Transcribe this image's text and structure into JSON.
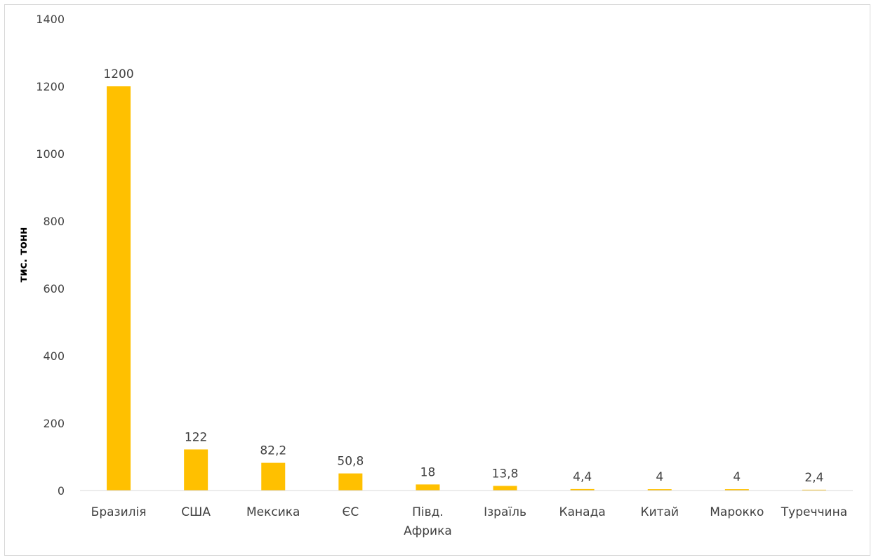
{
  "chart_data": {
    "type": "bar",
    "title": "",
    "xlabel": "",
    "ylabel": "тис. тонн",
    "ylim": [
      0,
      1400
    ],
    "yticks": [
      0,
      200,
      400,
      600,
      800,
      1000,
      1200,
      1400
    ],
    "grid": false,
    "legend": "none",
    "bar_color": "#ffc000",
    "categories": [
      "Бразилія",
      "США",
      "Мексика",
      "ЄС",
      "Півд. Африка",
      "Ізраїль",
      "Канада",
      "Китай",
      "Марокко",
      "Туреччина"
    ],
    "category_lines": [
      [
        "Бразилія"
      ],
      [
        "США"
      ],
      [
        "Мексика"
      ],
      [
        "ЄС"
      ],
      [
        "Півд.",
        "Африка"
      ],
      [
        "Ізраїль"
      ],
      [
        "Канада"
      ],
      [
        "Китай"
      ],
      [
        "Марокко"
      ],
      [
        "Туреччина"
      ]
    ],
    "values": [
      1200,
      122,
      82.2,
      50.8,
      18,
      13.8,
      4.4,
      4,
      4,
      2.4
    ],
    "data_labels": [
      "1200",
      "122",
      "82,2",
      "50,8",
      "18",
      "13,8",
      "4,4",
      "4",
      "4",
      "2,4"
    ]
  }
}
